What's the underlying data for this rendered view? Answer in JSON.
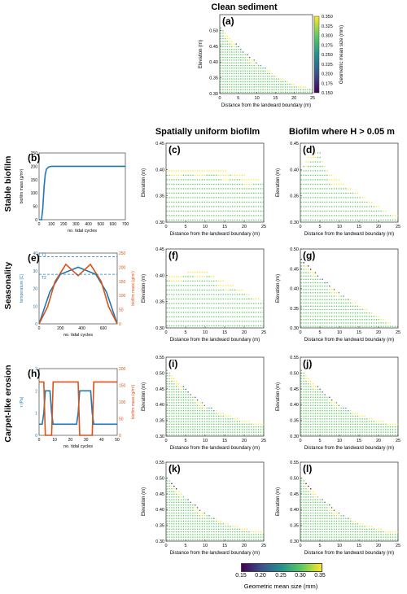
{
  "figure": {
    "top_title": "Clean sediment",
    "col_titles": [
      "Spatially uniform biofilm",
      "Biofilm where H > 0.05 m"
    ],
    "row_labels": [
      "Stable biofilm",
      "Seasonality",
      "Carpet-like erosion"
    ],
    "colorbar": {
      "label": "Geometric mean size (mm)",
      "ticks": [
        "0.150",
        "0.175",
        "0.200",
        "0.225",
        "0.250",
        "0.275",
        "0.300",
        "0.325",
        "0.350"
      ],
      "bottom_ticks": [
        "0.15",
        "0.20",
        "0.25",
        "0.30",
        "0.35"
      ],
      "colors": [
        "#440154",
        "#3b528b",
        "#21918c",
        "#5ec962",
        "#fde725"
      ]
    }
  },
  "chart_data": [
    {
      "panel": "(a)",
      "type": "scatter",
      "title": "",
      "xlabel": "Distance from the landward boundary (m)",
      "ylabel": "Elevation (m)",
      "xlim": [
        0,
        25
      ],
      "ylim": [
        0.3,
        0.55
      ],
      "xticks": [
        "0",
        "5",
        "10",
        "15",
        "20",
        "25"
      ],
      "yticks": [
        "0.30",
        "0.35",
        "0.40",
        "0.45",
        "0.50"
      ],
      "profile": {
        "x": [
          0,
          2,
          5,
          10,
          15,
          20,
          24
        ],
        "y": [
          0.52,
          0.49,
          0.45,
          0.4,
          0.36,
          0.33,
          0.32
        ]
      },
      "surface_sizes": [
        "fine",
        "fine",
        "medium",
        "coarse",
        "coarse",
        "coarse",
        "coarse"
      ]
    },
    {
      "panel": "(b)",
      "type": "line",
      "xlabel": "no. tidal cycles",
      "ylabel": "biofilm mass (g/m²)",
      "xlim": [
        0,
        700
      ],
      "ylim": [
        0,
        250
      ],
      "xticks": [
        "0",
        "100",
        "200",
        "300",
        "400",
        "500",
        "600",
        "700"
      ],
      "yticks": [
        "0",
        "50",
        "100",
        "150",
        "200",
        "250"
      ],
      "series": [
        {
          "color": "#1f77b4",
          "x": [
            0,
            20,
            30,
            40,
            50,
            60,
            80,
            100,
            700
          ],
          "y": [
            0,
            0,
            40,
            120,
            170,
            190,
            198,
            200,
            200
          ]
        }
      ]
    },
    {
      "panel": "(c)",
      "type": "scatter",
      "xlabel": "Distance from the landward boundary (m)",
      "ylabel": "Elevation (m)",
      "xlim": [
        0,
        25
      ],
      "ylim": [
        0.3,
        0.45
      ],
      "xticks": [
        "0",
        "5",
        "10",
        "15",
        "20",
        "25"
      ],
      "yticks": [
        "0.30",
        "0.35",
        "0.40",
        "0.45"
      ],
      "profile": {
        "x": [
          0,
          5,
          10,
          15,
          20,
          24
        ],
        "y": [
          0.4,
          0.4,
          0.402,
          0.398,
          0.39,
          0.38
        ]
      }
    },
    {
      "panel": "(d)",
      "type": "scatter",
      "xlabel": "Distance from the landward boundary (m)",
      "ylabel": "Elevation (m)",
      "xlim": [
        0,
        25
      ],
      "ylim": [
        0.3,
        0.45
      ],
      "xticks": [
        "0",
        "5",
        "10",
        "15",
        "20",
        "25"
      ],
      "yticks": [
        "0.30",
        "0.35",
        "0.40",
        "0.45"
      ],
      "profile": {
        "x": [
          0,
          2,
          4,
          5,
          6,
          8,
          12,
          16,
          20,
          24
        ],
        "y": [
          0.4,
          0.43,
          0.44,
          0.44,
          0.41,
          0.39,
          0.37,
          0.35,
          0.33,
          0.315
        ]
      }
    },
    {
      "panel": "(e)",
      "type": "line",
      "xlabel": "no. tidal cycles",
      "ylabel": "temperature [C]",
      "ylabel2": "biofilm mass (g/m²)",
      "xlim": [
        0,
        730
      ],
      "ylim": [
        0,
        40
      ],
      "y2lim": [
        0,
        250
      ],
      "xticks": [
        "0",
        "200",
        "400",
        "600"
      ],
      "yticks": [
        "0",
        "10",
        "20",
        "30",
        "40"
      ],
      "y2ticks": [
        "0",
        "50",
        "100",
        "150",
        "200",
        "250"
      ],
      "series": [
        {
          "name": "temperature",
          "color": "#1f77b4",
          "x": [
            0,
            100,
            200,
            365,
            530,
            630,
            730
          ],
          "y": [
            0,
            18,
            28,
            32,
            28,
            18,
            0
          ]
        },
        {
          "name": "biofilm mass",
          "color": "#d95319",
          "x": [
            0,
            80,
            150,
            250,
            365,
            480,
            580,
            650,
            730
          ],
          "y": [
            0,
            60,
            150,
            210,
            170,
            210,
            150,
            60,
            0
          ],
          "axis": "right"
        }
      ],
      "annotations": [
        "T1",
        "T2"
      ],
      "hlines": [
        {
          "y": 38,
          "style": "dashed"
        },
        {
          "y": 28,
          "style": "dashed"
        }
      ]
    },
    {
      "panel": "(f)",
      "type": "scatter",
      "xlabel": "Distance from the landward boundary (m)",
      "ylabel": "Elevation (m)",
      "xlim": [
        0,
        25
      ],
      "ylim": [
        0.3,
        0.45
      ],
      "xticks": [
        "0",
        "5",
        "10",
        "15",
        "20",
        "25"
      ],
      "yticks": [
        "0.30",
        "0.35",
        "0.40",
        "0.45"
      ],
      "profile": {
        "x": [
          0,
          5,
          8,
          10,
          12,
          16,
          20,
          24
        ],
        "y": [
          0.4,
          0.405,
          0.412,
          0.408,
          0.4,
          0.385,
          0.37,
          0.355
        ]
      }
    },
    {
      "panel": "(g)",
      "type": "scatter",
      "xlabel": "Distance from the landward boundary (m)",
      "ylabel": "Elevation (m)",
      "xlim": [
        0,
        25
      ],
      "ylim": [
        0.3,
        0.5
      ],
      "xticks": [
        "0",
        "5",
        "10",
        "15",
        "20",
        "25"
      ],
      "yticks": [
        "0.30",
        "0.35",
        "0.40",
        "0.45",
        "0.50"
      ],
      "profile": {
        "x": [
          0,
          2,
          5,
          10,
          15,
          20,
          24
        ],
        "y": [
          0.48,
          0.46,
          0.43,
          0.39,
          0.36,
          0.33,
          0.31
        ]
      }
    },
    {
      "panel": "(h)",
      "type": "line",
      "xlabel": "no. tidal cycles",
      "ylabel": "τ (Pa)",
      "ylabel2": "biofilm mass (g/m²)",
      "xlim": [
        0,
        50
      ],
      "ylim": [
        0,
        3
      ],
      "xticks": [
        "0",
        "10",
        "20",
        "30",
        "40",
        "50"
      ],
      "yticks": [
        "0",
        "1",
        "2",
        "3"
      ],
      "y2ticks": [
        "0",
        "50",
        "100",
        "150",
        "200"
      ],
      "series": [
        {
          "name": "τ",
          "color": "#1f77b4",
          "x": [
            0,
            2,
            3,
            4,
            7,
            8,
            9,
            10,
            24,
            25,
            26,
            27,
            33,
            34,
            35,
            36,
            50
          ],
          "y": [
            0.5,
            0.5,
            1,
            2,
            2,
            1,
            0.5,
            0.5,
            0.5,
            1,
            2,
            2,
            2,
            1,
            0.5,
            0.5,
            0.5
          ]
        },
        {
          "name": "biofilm mass",
          "color": "#d95319",
          "x": [
            0,
            3,
            4,
            7,
            8,
            9,
            10,
            24,
            25,
            26,
            27,
            32,
            33,
            34,
            35,
            36,
            50
          ],
          "y": [
            200,
            200,
            0,
            0,
            0,
            200,
            200,
            200,
            200,
            0,
            0,
            0,
            0,
            0,
            200,
            200,
            200
          ],
          "axis": "right"
        }
      ]
    },
    {
      "panel": "(i)",
      "type": "scatter",
      "xlabel": "Distance from the landward boundary (m)",
      "ylabel": "Elevation (m)",
      "xlim": [
        0,
        25
      ],
      "ylim": [
        0.3,
        0.55
      ],
      "xticks": [
        "0",
        "5",
        "10",
        "15",
        "20",
        "25"
      ],
      "yticks": [
        "0.30",
        "0.35",
        "0.40",
        "0.45",
        "0.50",
        "0.55"
      ],
      "profile": {
        "x": [
          0,
          2,
          5,
          10,
          15,
          20,
          24
        ],
        "y": [
          0.52,
          0.49,
          0.45,
          0.4,
          0.37,
          0.35,
          0.34
        ]
      }
    },
    {
      "panel": "(j)",
      "type": "scatter",
      "xlabel": "Distance from the landward boundary (m)",
      "ylabel": "Elevation (m)",
      "xlim": [
        0,
        25
      ],
      "ylim": [
        0.3,
        0.55
      ],
      "xticks": [
        "0",
        "5",
        "10",
        "15",
        "20",
        "25"
      ],
      "yticks": [
        "0.30",
        "0.35",
        "0.40",
        "0.45",
        "0.50",
        "0.55"
      ],
      "profile": {
        "x": [
          0,
          2,
          5,
          10,
          15,
          20,
          24
        ],
        "y": [
          0.52,
          0.49,
          0.45,
          0.4,
          0.37,
          0.35,
          0.34
        ]
      }
    },
    {
      "panel": "(k)",
      "type": "scatter",
      "xlabel": "Distance from the landward boundary (m)",
      "ylabel": "Elevation (m)",
      "xlim": [
        0,
        25
      ],
      "ylim": [
        0.3,
        0.55
      ],
      "xticks": [
        "0",
        "5",
        "10",
        "15",
        "20",
        "25"
      ],
      "yticks": [
        "0.30",
        "0.35",
        "0.40",
        "0.45",
        "0.50",
        "0.55"
      ],
      "profile": {
        "x": [
          0,
          2,
          5,
          10,
          15,
          20,
          24
        ],
        "y": [
          0.51,
          0.48,
          0.44,
          0.39,
          0.36,
          0.34,
          0.33
        ]
      }
    },
    {
      "panel": "(l)",
      "type": "scatter",
      "xlabel": "Distance from the landward boundary (m)",
      "ylabel": "Elevation (m)",
      "xlim": [
        0,
        25
      ],
      "ylim": [
        0.3,
        0.55
      ],
      "xticks": [
        "0",
        "5",
        "10",
        "15",
        "20",
        "25"
      ],
      "yticks": [
        "0.30",
        "0.35",
        "0.40",
        "0.45",
        "0.50",
        "0.55"
      ],
      "profile": {
        "x": [
          0,
          2,
          5,
          10,
          15,
          20,
          24
        ],
        "y": [
          0.51,
          0.48,
          0.44,
          0.39,
          0.36,
          0.34,
          0.33
        ]
      }
    }
  ]
}
